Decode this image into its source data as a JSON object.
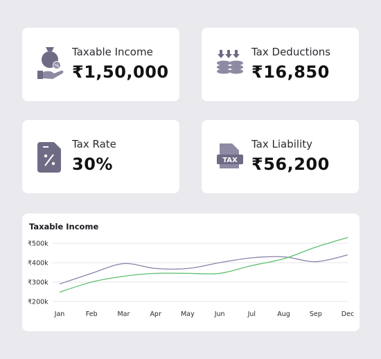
{
  "cards": {
    "taxable_income": {
      "label": "Taxable Income",
      "value": "₹1,50,000",
      "icon": "money-bag-hand-icon"
    },
    "tax_deductions": {
      "label": "Tax Deductions",
      "value": "₹16,850",
      "icon": "coin-stack-arrows-icon"
    },
    "tax_rate": {
      "label": "Tax Rate",
      "value": "30%",
      "icon": "percent-document-icon"
    },
    "tax_liability": {
      "label": "Tax Liability",
      "value": "₹56,200",
      "icon": "tax-document-icon"
    }
  },
  "colors": {
    "icon": "#6e6b85",
    "series_purple": "#8a82a8",
    "series_green": "#5cbf6e",
    "grid": "#e6e6ea"
  },
  "chart_data": {
    "type": "line",
    "title": "Taxable Income",
    "categories": [
      "Jan",
      "Feb",
      "Mar",
      "Apr",
      "May",
      "Jun",
      "Jul",
      "Aug",
      "Sep",
      "Dec"
    ],
    "yticks": [
      "₹200k",
      "₹300k",
      "₹400k",
      "₹500k"
    ],
    "ylim": [
      200000,
      500000
    ],
    "grid": true,
    "series": [
      {
        "color": "#8a82a8",
        "values": [
          290000,
          345000,
          395000,
          370000,
          370000,
          400000,
          425000,
          430000,
          405000,
          440000
        ]
      },
      {
        "color": "#5cbf6e",
        "values": [
          248000,
          300000,
          330000,
          345000,
          345000,
          345000,
          385000,
          420000,
          480000,
          530000
        ]
      }
    ]
  }
}
